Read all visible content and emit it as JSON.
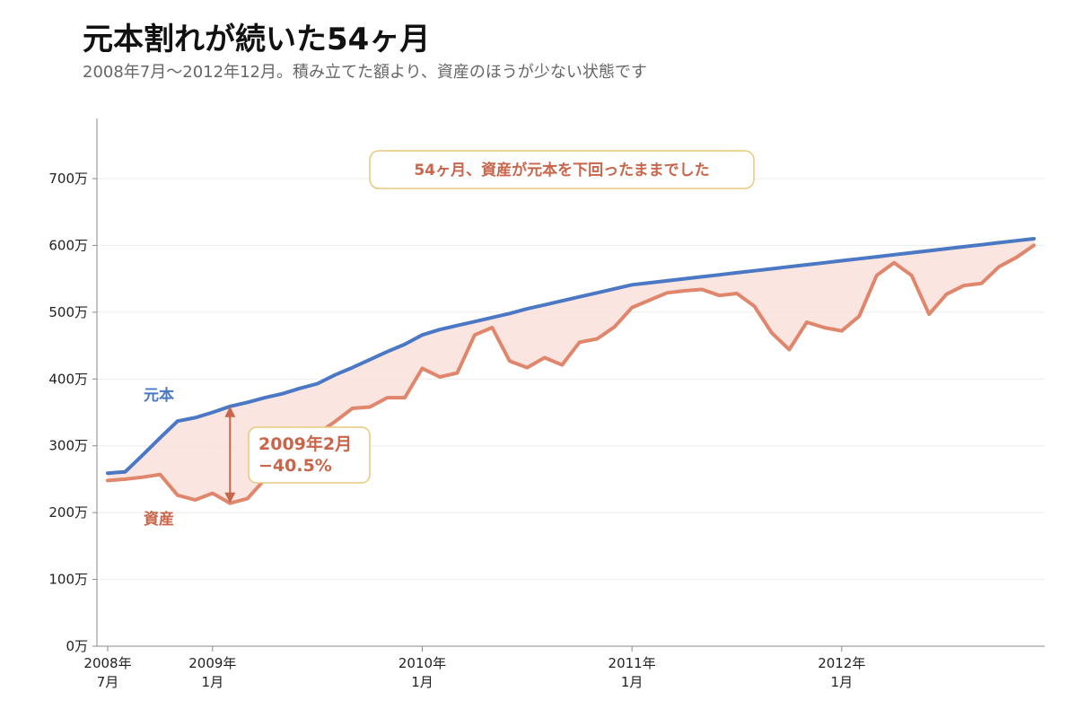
{
  "title": "元本割れが続いた54ヶ月",
  "subtitle": "2008年7月〜2012年12月。積み立てた額より、資産のほうが少ない状態です",
  "colors": {
    "principal": "#4a78c4",
    "assets": "#e0866c",
    "fill": "#f9e1da",
    "accent": "#c8654a",
    "box_border": "#e8c97a"
  },
  "chart_data": {
    "type": "line",
    "title": "元本割れが続いた54ヶ月",
    "subtitle": "2008年7月〜2012年12月。積み立てた額より、資産のほうが少ない状態です",
    "xlabel": "",
    "ylabel": "",
    "ylim": [
      0,
      790
    ],
    "y_ticks": [
      0,
      100,
      200,
      300,
      400,
      500,
      600,
      700
    ],
    "y_tick_labels": [
      "0万",
      "100万",
      "200万",
      "300万",
      "400万",
      "500万",
      "600万",
      "700万"
    ],
    "x_ticks": [
      {
        "month": "2008-07",
        "line1": "2008年",
        "line2": "7月"
      },
      {
        "month": "2009-01",
        "line1": "2009年",
        "line2": "1月"
      },
      {
        "month": "2010-01",
        "line1": "2010年",
        "line2": "1月"
      },
      {
        "month": "2011-01",
        "line1": "2011年",
        "line2": "1月"
      },
      {
        "month": "2012-01",
        "line1": "2012年",
        "line2": "1月"
      }
    ],
    "grid": true,
    "x": [
      "2008-07",
      "2008-08",
      "2008-09",
      "2008-10",
      "2008-11",
      "2008-12",
      "2009-01",
      "2009-02",
      "2009-03",
      "2009-04",
      "2009-05",
      "2009-06",
      "2009-07",
      "2009-08",
      "2009-09",
      "2009-10",
      "2009-11",
      "2009-12",
      "2010-01",
      "2010-02",
      "2010-03",
      "2010-04",
      "2010-05",
      "2010-06",
      "2010-07",
      "2010-08",
      "2010-09",
      "2010-10",
      "2010-11",
      "2010-12",
      "2011-01",
      "2011-02",
      "2011-03",
      "2011-04",
      "2011-05",
      "2011-06",
      "2011-07",
      "2011-08",
      "2011-09",
      "2011-10",
      "2011-11",
      "2011-12",
      "2012-01",
      "2012-02",
      "2012-03",
      "2012-04",
      "2012-05",
      "2012-06",
      "2012-07",
      "2012-08",
      "2012-09",
      "2012-10",
      "2012-11",
      "2012-12"
    ],
    "series": [
      {
        "name": "元本",
        "values": [
          259,
          261,
          286,
          312,
          337,
          342,
          350,
          359,
          365,
          372,
          378,
          386,
          393,
          406,
          417,
          429,
          441,
          452,
          466,
          474,
          480,
          486,
          492,
          498,
          505,
          511,
          517,
          523,
          529,
          535,
          541,
          544,
          547,
          550,
          553,
          556,
          559,
          562,
          565,
          568,
          571,
          574,
          577,
          580,
          583,
          586,
          589,
          592,
          595,
          598,
          601,
          604,
          607,
          610
        ]
      },
      {
        "name": "資産",
        "values": [
          248,
          250,
          253,
          257,
          226,
          219,
          229,
          214,
          221,
          250,
          270,
          298,
          318,
          336,
          356,
          358,
          372,
          372,
          416,
          403,
          409,
          466,
          477,
          427,
          417,
          432,
          421,
          455,
          460,
          478,
          507,
          518,
          529,
          532,
          534,
          525,
          528,
          509,
          469,
          444,
          485,
          477,
          472,
          494,
          555,
          574,
          555,
          497,
          527,
          540,
          543,
          568,
          582,
          600
        ]
      }
    ],
    "annotations": {
      "trough": {
        "month": "2009-02",
        "line1": "2009年2月",
        "line2": "−40.5%"
      },
      "note": "54ヶ月、資産が元本を下回ったままでした"
    }
  }
}
